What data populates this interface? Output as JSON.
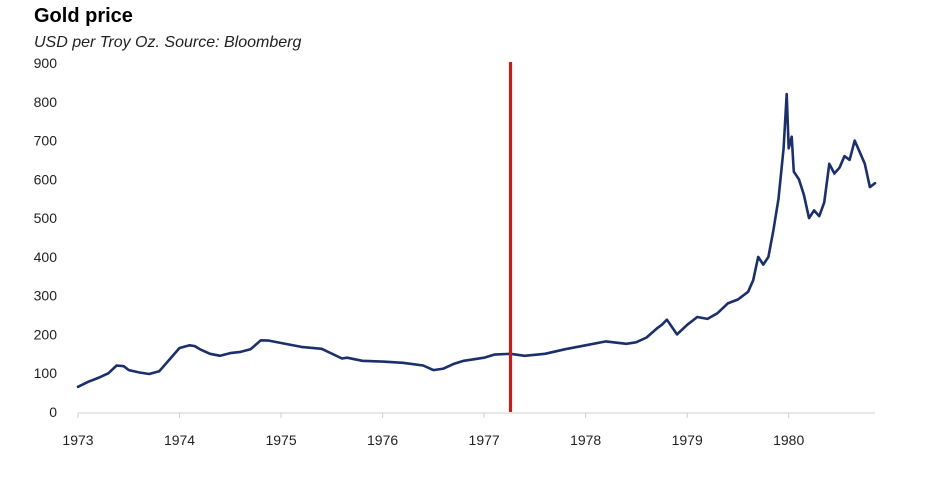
{
  "header": {
    "title": "Gold price",
    "subtitle": "USD per Troy Oz. Source: Bloomberg"
  },
  "chart_data": {
    "type": "line",
    "title": "Gold price",
    "subtitle": "USD per Troy Oz. Source: Bloomberg",
    "xlabel": "",
    "ylabel": "",
    "xlim": [
      1973,
      1980.85
    ],
    "ylim": [
      0,
      900
    ],
    "x_ticks": [
      "1973",
      "1974",
      "1975",
      "1976",
      "1977",
      "1978",
      "1979",
      "1980"
    ],
    "y_ticks": [
      "0",
      "100",
      "200",
      "300",
      "400",
      "500",
      "600",
      "700",
      "800",
      "900"
    ],
    "grid": false,
    "legend": "none",
    "line_color": "#1b2f6b",
    "marker_color": "#c0201e",
    "vertical_marker_x": 1977.26,
    "series": [
      {
        "x": [
          1973.0,
          1973.1,
          1973.2,
          1973.3,
          1973.38,
          1973.45,
          1973.5,
          1973.6,
          1973.7,
          1973.8,
          1973.9,
          1974.0,
          1974.1,
          1974.15,
          1974.2,
          1974.3,
          1974.4,
          1974.5,
          1974.6,
          1974.7,
          1974.8,
          1974.88,
          1975.0,
          1975.2,
          1975.4,
          1975.6,
          1975.65,
          1975.8,
          1976.0,
          1976.2,
          1976.4,
          1976.5,
          1976.6,
          1976.7,
          1976.8,
          1977.0,
          1977.1,
          1977.26,
          1977.4,
          1977.6,
          1977.8,
          1978.0,
          1978.2,
          1978.4,
          1978.5,
          1978.6,
          1978.7,
          1978.75,
          1978.8,
          1978.9,
          1979.0,
          1979.1,
          1979.2,
          1979.3,
          1979.4,
          1979.5,
          1979.6,
          1979.65,
          1979.7,
          1979.75,
          1979.8,
          1979.85,
          1979.9,
          1979.95,
          1979.98,
          1980.0,
          1980.03,
          1980.05,
          1980.1,
          1980.15,
          1980.2,
          1980.25,
          1980.3,
          1980.35,
          1980.4,
          1980.45,
          1980.5,
          1980.55,
          1980.6,
          1980.65,
          1980.7,
          1980.75,
          1980.8,
          1980.85
        ],
        "values": [
          65,
          78,
          88,
          100,
          120,
          118,
          108,
          102,
          98,
          105,
          135,
          165,
          172,
          170,
          162,
          150,
          145,
          152,
          155,
          162,
          185,
          184,
          178,
          168,
          163,
          138,
          140,
          132,
          130,
          127,
          120,
          108,
          112,
          124,
          132,
          140,
          148,
          150,
          145,
          150,
          162,
          172,
          182,
          176,
          180,
          192,
          215,
          225,
          238,
          200,
          225,
          245,
          240,
          255,
          280,
          290,
          310,
          340,
          400,
          380,
          400,
          470,
          550,
          680,
          820,
          680,
          710,
          620,
          600,
          560,
          500,
          520,
          505,
          540,
          640,
          615,
          630,
          660,
          650,
          700,
          670,
          640,
          580,
          590
        ]
      }
    ]
  }
}
